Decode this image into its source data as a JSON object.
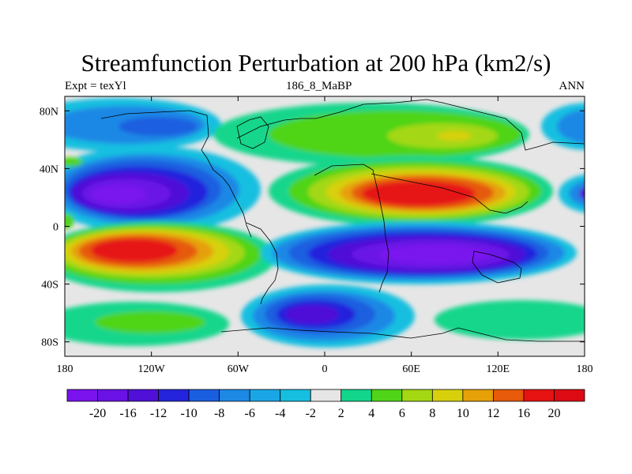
{
  "figure": {
    "title": "Streamfunction Perturbation at 200 hPa (km2/s)",
    "left_string": "Expt = texYl",
    "center_string": "186_8_MaBP",
    "right_string": "ANN"
  },
  "axes": {
    "lon_ticks": [
      "180",
      "120W",
      "60W",
      "0",
      "60E",
      "120E",
      "180"
    ],
    "lat_ticks": [
      "80N",
      "40N",
      "0",
      "40S",
      "80S"
    ]
  },
  "colorbar": {
    "labels": [
      "-20",
      "-16",
      "-12",
      "-10",
      "-8",
      "-6",
      "-4",
      "-2",
      "2",
      "4",
      "6",
      "8",
      "10",
      "12",
      "16",
      "20"
    ],
    "colors": [
      "#7a12ee",
      "#6a12e6",
      "#5010d8",
      "#2424dd",
      "#1a5ee0",
      "#1e88e5",
      "#1aa6e6",
      "#16bfe0",
      "#e6e6e6",
      "#12d68c",
      "#4fd418",
      "#a4d812",
      "#d8d00c",
      "#e6a008",
      "#e65a0a",
      "#e61212",
      "#dd0a14"
    ]
  },
  "map": {
    "lon_range": [
      -180,
      180
    ],
    "lat_range": [
      -90,
      90
    ],
    "projection": "cylindrical equidistant",
    "background_color": "#e6e6e6"
  }
}
